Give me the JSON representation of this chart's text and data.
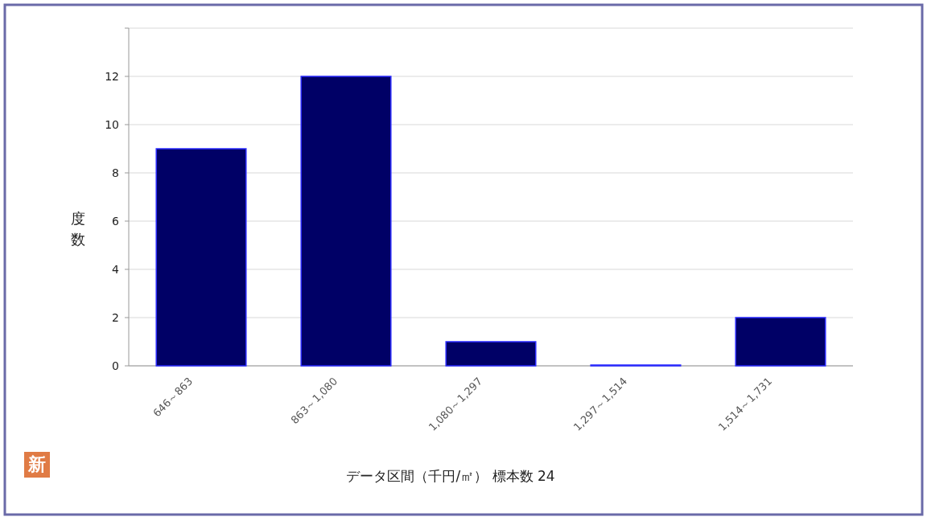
{
  "chart_data": {
    "type": "bar",
    "categories": [
      "646～863",
      "863～1,080",
      "1,080～1,297",
      "1,297～1,514",
      "1,514～1,731"
    ],
    "values": [
      9,
      12,
      1,
      0,
      2
    ],
    "color": "#000066",
    "xlabel": "データ区間（千円/㎡） 標本数 24",
    "ylabel": "度数",
    "ylim": [
      0,
      14
    ],
    "yticks": [
      0,
      2,
      4,
      6,
      8,
      10,
      12,
      {
        "value": 14,
        "label": null
      }
    ],
    "grid": "y",
    "annotations": [
      "新"
    ]
  }
}
